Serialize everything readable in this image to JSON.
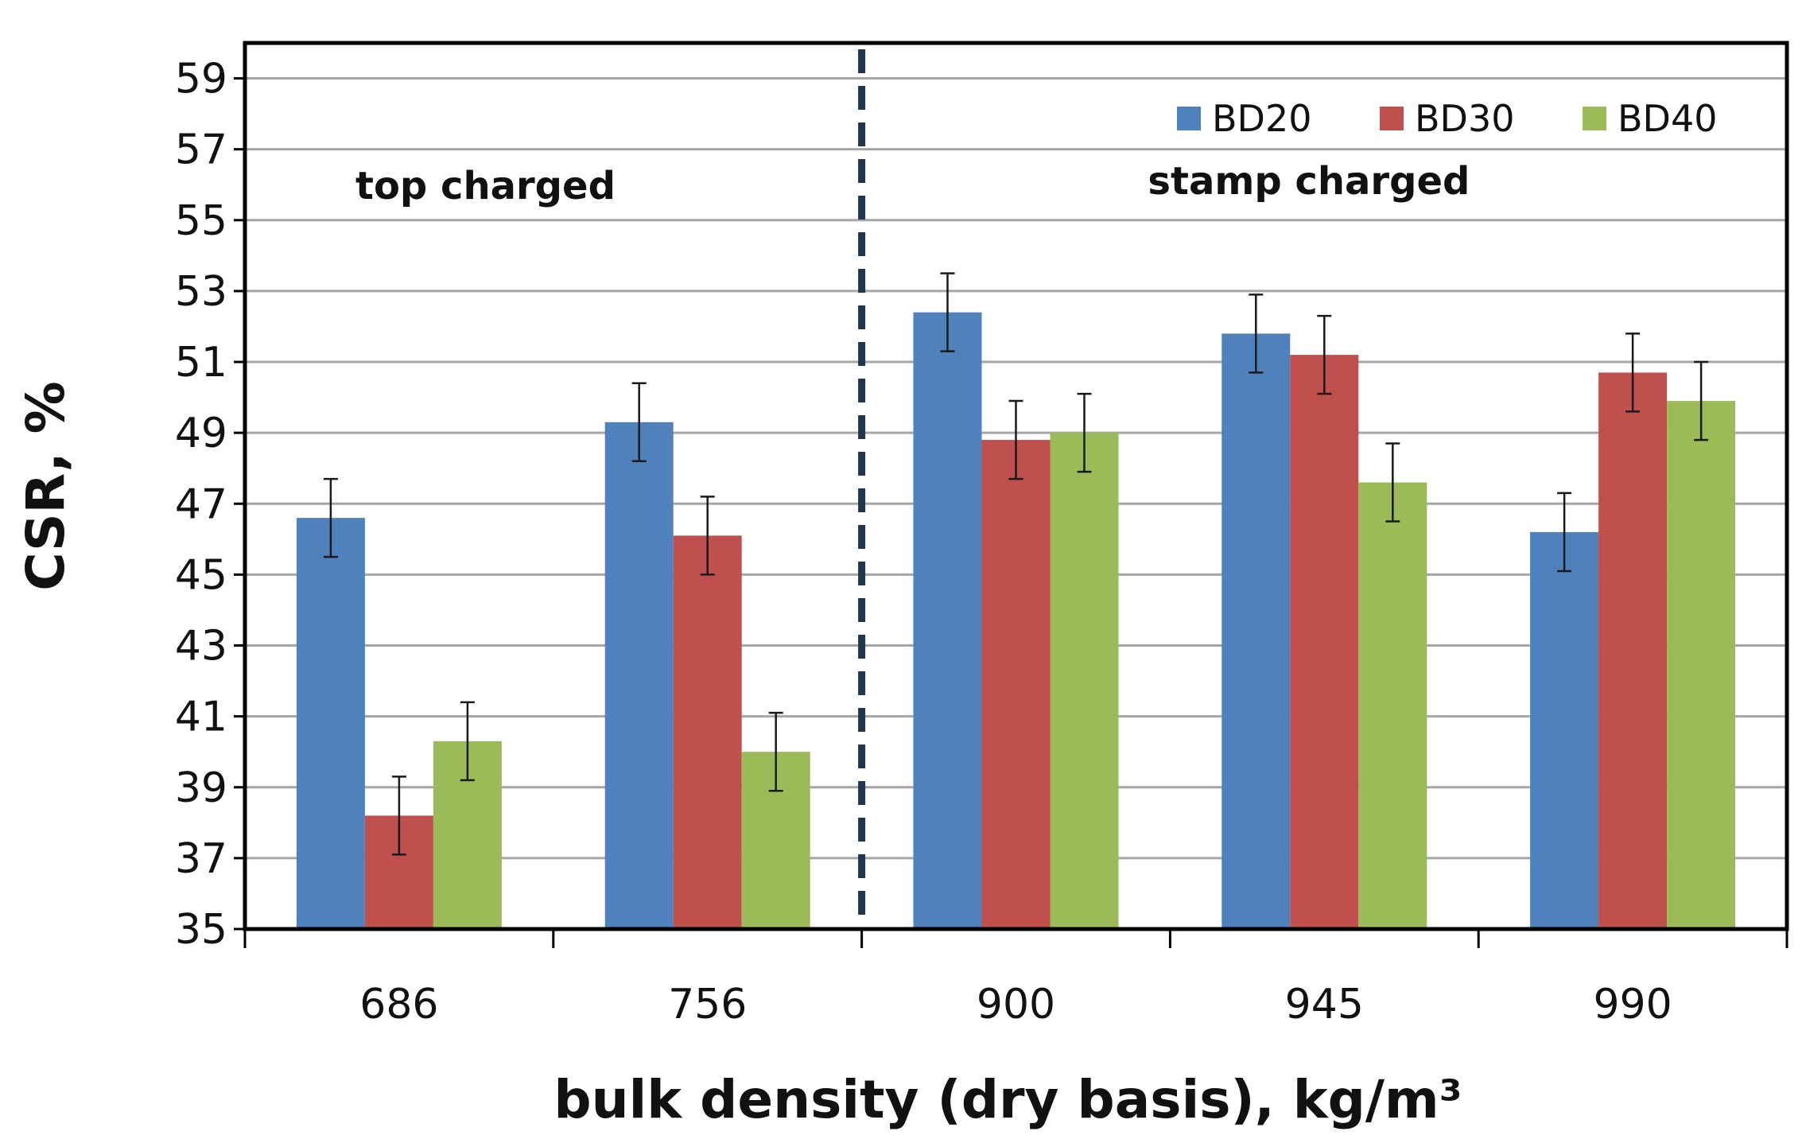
{
  "chart_data": {
    "type": "bar",
    "categories": [
      "686",
      "756",
      "900",
      "945",
      "990"
    ],
    "series": [
      {
        "name": "BD20",
        "values": [
          46.6,
          49.3,
          52.4,
          51.8,
          46.2
        ],
        "errors": [
          1.1,
          1.1,
          1.1,
          1.1,
          1.1
        ]
      },
      {
        "name": "BD30",
        "values": [
          38.2,
          46.1,
          48.8,
          51.2,
          50.7
        ],
        "errors": [
          1.1,
          1.1,
          1.1,
          1.1,
          1.1
        ]
      },
      {
        "name": "BD40",
        "values": [
          40.3,
          40.0,
          49.0,
          47.6,
          49.9
        ],
        "errors": [
          1.1,
          1.1,
          1.1,
          1.1,
          1.1
        ]
      }
    ],
    "xlabel": "bulk density (dry basis), kg/m³",
    "ylabel": "CSR, %",
    "ylim": [
      35,
      60
    ],
    "yticks": [
      35,
      37,
      39,
      41,
      43,
      45,
      47,
      49,
      51,
      53,
      55,
      57,
      59
    ],
    "grid": true,
    "legend_position": "top-right",
    "colors": {
      "BD20": "#4f81bd",
      "BD30": "#c0504d",
      "BD40": "#9bbb59"
    },
    "divider_after_category_index": 1,
    "annotations": [
      "top charged",
      "stamp charged"
    ]
  }
}
